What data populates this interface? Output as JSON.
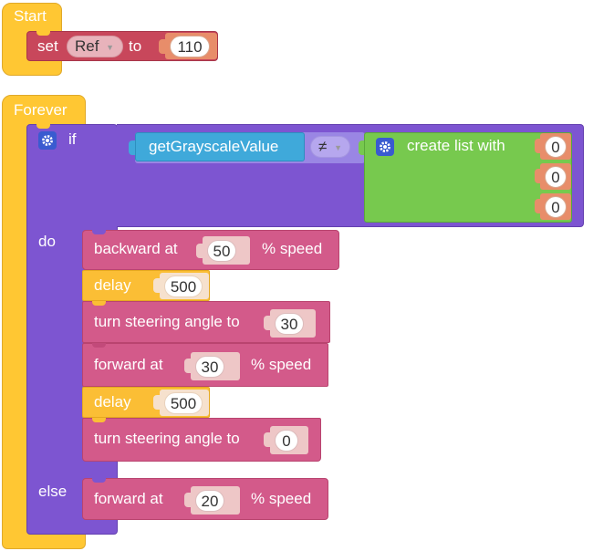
{
  "start_block": {
    "hat_label": "Start",
    "set_label": "set",
    "variable_name": "Ref",
    "to_label": "to",
    "value": "110"
  },
  "forever_block": {
    "hat_label": "Forever",
    "if_label": "if",
    "do_label": "do",
    "else_label": "else",
    "condition": {
      "left_reporter": "getGrayscaleValue",
      "operator": "≠",
      "list_label": "create list with",
      "list_values": [
        "0",
        "0",
        "0"
      ]
    },
    "do_statements": [
      {
        "label": "backward at",
        "value": "50",
        "suffix": "% speed"
      },
      {
        "label": "delay",
        "value": "500"
      },
      {
        "label": "turn steering angle to",
        "value": "30"
      },
      {
        "label": "forward at",
        "value": "30",
        "suffix": "% speed"
      },
      {
        "label": "delay",
        "value": "500"
      },
      {
        "label": "turn steering angle to",
        "value": "0"
      }
    ],
    "else_statements": [
      {
        "label": "forward at",
        "value": "20",
        "suffix": "% speed"
      }
    ]
  },
  "colors": {
    "events": "#ffc733",
    "variable": "#c8475b",
    "number_shadow": "#e88d6a",
    "logic_if": "#7d55d1",
    "logic_operator": "#9a86e4",
    "list": "#77c94e",
    "sensor": "#3fa9da",
    "motor": "#d35a8a",
    "delay": "#fbbe35"
  }
}
